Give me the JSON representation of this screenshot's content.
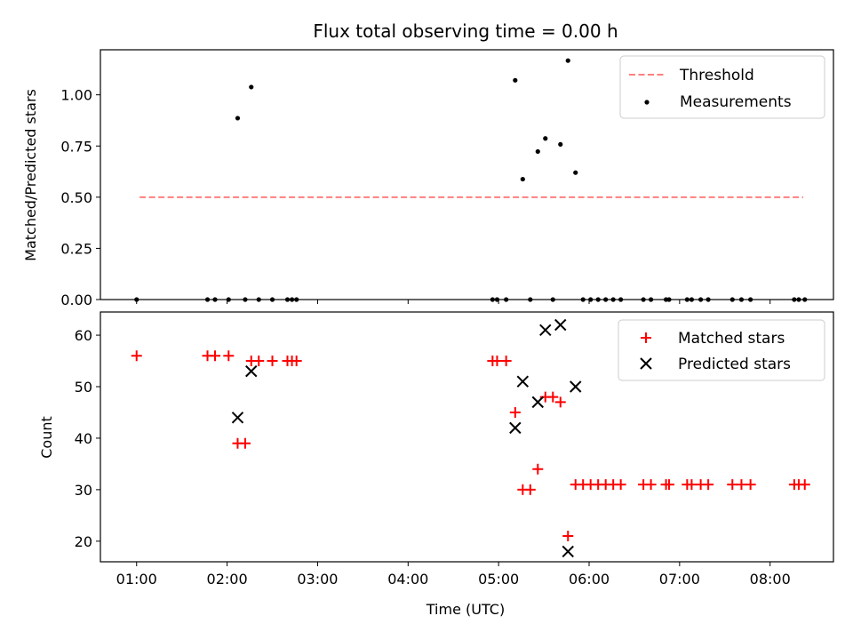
{
  "figure_title": "Flux total observing time = 0.00 h",
  "chart_data": [
    {
      "id": "ratio-panel",
      "type": "scatter",
      "ylabel": "Matched/Predicted stars",
      "ylim": [
        0.0,
        1.22
      ],
      "yticks": [
        0.0,
        0.25,
        0.5,
        0.75,
        1.0
      ],
      "ytick_labels": [
        "0.00",
        "0.25",
        "0.50",
        "0.75",
        "1.00"
      ],
      "legend_placement": "top-right",
      "threshold": {
        "name": "Threshold",
        "value": 0.5,
        "x_start": "01:02",
        "x_end": "08:22",
        "color": "#ff7f7f"
      },
      "measurements": {
        "name": "Measurements",
        "color": "#000000",
        "points": [
          [
            "01:00",
            0.0
          ],
          [
            "01:47",
            0.0
          ],
          [
            "01:52",
            0.0
          ],
          [
            "02:01",
            0.0
          ],
          [
            "02:07",
            0.886
          ],
          [
            "02:12",
            0.0
          ],
          [
            "02:16",
            1.038
          ],
          [
            "02:21",
            0.0
          ],
          [
            "02:30",
            0.0
          ],
          [
            "02:40",
            0.0
          ],
          [
            "02:43",
            0.0
          ],
          [
            "02:46",
            0.0
          ],
          [
            "04:56",
            0.0
          ],
          [
            "04:59",
            0.0
          ],
          [
            "05:05",
            0.0
          ],
          [
            "05:11",
            1.071
          ],
          [
            "05:16",
            0.588
          ],
          [
            "05:21",
            0.0
          ],
          [
            "05:26",
            0.723
          ],
          [
            "05:31",
            0.787
          ],
          [
            "05:36",
            0.0
          ],
          [
            "05:41",
            0.758
          ],
          [
            "05:46",
            1.167
          ],
          [
            "05:51",
            0.62
          ],
          [
            "05:56",
            0.0
          ],
          [
            "06:01",
            0.0
          ],
          [
            "06:06",
            0.0
          ],
          [
            "06:11",
            0.0
          ],
          [
            "06:16",
            0.0
          ],
          [
            "06:21",
            0.0
          ],
          [
            "06:36",
            0.0
          ],
          [
            "06:41",
            0.0
          ],
          [
            "06:51",
            0.0
          ],
          [
            "06:53",
            0.0
          ],
          [
            "07:05",
            0.0
          ],
          [
            "07:08",
            0.0
          ],
          [
            "07:14",
            0.0
          ],
          [
            "07:19",
            0.0
          ],
          [
            "07:35",
            0.0
          ],
          [
            "07:41",
            0.0
          ],
          [
            "07:47",
            0.0
          ],
          [
            "08:16",
            0.0
          ],
          [
            "08:19",
            0.0
          ],
          [
            "08:23",
            0.0
          ]
        ]
      }
    },
    {
      "id": "count-panel",
      "type": "scatter",
      "xlabel": "Time (UTC)",
      "ylabel": "Count",
      "xlim": [
        "00:36",
        "08:42"
      ],
      "xticks": [
        "01:00",
        "02:00",
        "03:00",
        "04:00",
        "05:00",
        "06:00",
        "07:00",
        "08:00"
      ],
      "ylim": [
        16.0,
        64.5
      ],
      "yticks": [
        20,
        30,
        40,
        50,
        60
      ],
      "legend_placement": "top-right",
      "series": [
        {
          "name": "Matched stars",
          "marker": "plus",
          "color": "#ff0000",
          "points": [
            [
              "01:00",
              56
            ],
            [
              "01:47",
              56
            ],
            [
              "01:52",
              56
            ],
            [
              "02:01",
              56
            ],
            [
              "02:07",
              39
            ],
            [
              "02:12",
              39
            ],
            [
              "02:16",
              55
            ],
            [
              "02:21",
              55
            ],
            [
              "02:30",
              55
            ],
            [
              "02:40",
              55
            ],
            [
              "02:43",
              55
            ],
            [
              "02:46",
              55
            ],
            [
              "04:56",
              55
            ],
            [
              "04:59",
              55
            ],
            [
              "05:05",
              55
            ],
            [
              "05:11",
              45
            ],
            [
              "05:16",
              30
            ],
            [
              "05:21",
              30
            ],
            [
              "05:26",
              34
            ],
            [
              "05:31",
              48
            ],
            [
              "05:36",
              48
            ],
            [
              "05:41",
              47
            ],
            [
              "05:46",
              21
            ],
            [
              "05:51",
              31
            ],
            [
              "05:56",
              31
            ],
            [
              "06:01",
              31
            ],
            [
              "06:06",
              31
            ],
            [
              "06:11",
              31
            ],
            [
              "06:16",
              31
            ],
            [
              "06:21",
              31
            ],
            [
              "06:36",
              31
            ],
            [
              "06:41",
              31
            ],
            [
              "06:51",
              31
            ],
            [
              "06:53",
              31
            ],
            [
              "07:05",
              31
            ],
            [
              "07:08",
              31
            ],
            [
              "07:14",
              31
            ],
            [
              "07:19",
              31
            ],
            [
              "07:35",
              31
            ],
            [
              "07:41",
              31
            ],
            [
              "07:47",
              31
            ],
            [
              "08:16",
              31
            ],
            [
              "08:19",
              31
            ],
            [
              "08:23",
              31
            ]
          ]
        },
        {
          "name": "Predicted stars",
          "marker": "x",
          "color": "#000000",
          "points": [
            [
              "02:07",
              44
            ],
            [
              "02:16",
              53
            ],
            [
              "05:11",
              42
            ],
            [
              "05:16",
              51
            ],
            [
              "05:26",
              47
            ],
            [
              "05:31",
              61
            ],
            [
              "05:41",
              62
            ],
            [
              "05:46",
              18
            ],
            [
              "05:51",
              50
            ]
          ]
        }
      ]
    }
  ]
}
